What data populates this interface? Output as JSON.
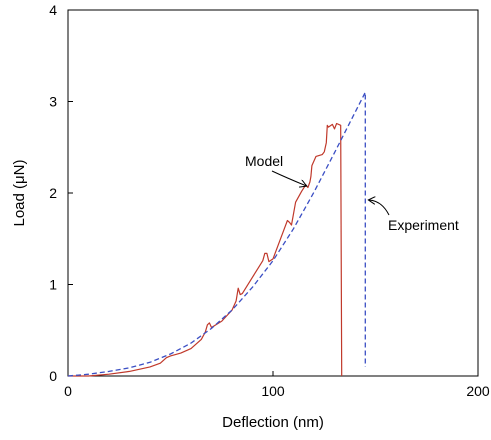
{
  "chart_data": {
    "type": "line",
    "title": "",
    "xlabel": "Deflection (nm)",
    "ylabel": "Load (μN)",
    "xlim": [
      0,
      200
    ],
    "ylim": [
      0,
      4
    ],
    "x_ticks": [
      0,
      100,
      200
    ],
    "y_ticks": [
      0,
      1,
      2,
      3,
      4
    ],
    "grid": false,
    "colors": {
      "model": "#c0392b",
      "experiment": "#3b4fc4"
    },
    "series": [
      {
        "name": "Model",
        "style": "solid",
        "x": [
          0,
          10,
          20,
          30,
          40,
          45,
          48,
          50,
          55,
          60,
          65,
          67,
          68,
          69,
          70,
          75,
          80,
          82,
          83,
          84,
          85,
          90,
          95,
          96,
          97,
          98,
          100,
          105,
          107,
          108,
          109,
          111,
          114,
          116,
          117,
          118,
          118.5,
          119,
          121,
          124,
          125,
          126,
          126.5,
          127,
          129,
          130,
          131,
          133,
          133,
          133.5
        ],
        "y": [
          0,
          0,
          0.02,
          0.05,
          0.1,
          0.14,
          0.2,
          0.22,
          0.25,
          0.3,
          0.4,
          0.48,
          0.56,
          0.58,
          0.53,
          0.6,
          0.72,
          0.82,
          0.96,
          0.89,
          0.9,
          1.08,
          1.26,
          1.34,
          1.34,
          1.25,
          1.28,
          1.58,
          1.7,
          1.68,
          1.65,
          1.9,
          2.02,
          2.09,
          2.06,
          2.12,
          2.18,
          2.3,
          2.4,
          2.42,
          2.45,
          2.55,
          2.74,
          2.72,
          2.75,
          2.7,
          2.76,
          2.74,
          2.7,
          0
        ]
      },
      {
        "name": "Experiment",
        "style": "dashed",
        "x": [
          0,
          5,
          10,
          20,
          30,
          40,
          50,
          60,
          70,
          80,
          90,
          100,
          110,
          120,
          130,
          140,
          145,
          145
        ],
        "y": [
          0,
          0.01,
          0.02,
          0.05,
          0.09,
          0.15,
          0.24,
          0.36,
          0.52,
          0.72,
          0.97,
          1.26,
          1.61,
          2.01,
          2.44,
          2.88,
          3.1,
          0.1
        ]
      }
    ],
    "annotations": [
      {
        "text": "Model",
        "series": "Model"
      },
      {
        "text": "Experiment",
        "series": "Experiment"
      }
    ]
  }
}
